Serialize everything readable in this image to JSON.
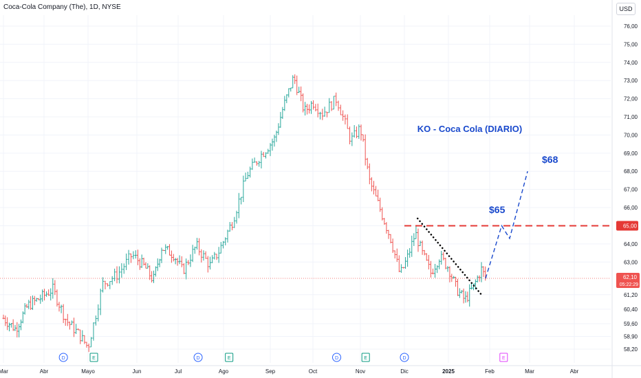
{
  "chart_title": "Coca-Cola Company (The), 1D, NYSE",
  "currency_button": "USD",
  "annotation_title": "KO - Coca Cola (DIARIO)",
  "price_label_65": "$65",
  "price_label_68": "$68",
  "price_tag_level": "65,00",
  "price_tag_last": "62,10",
  "price_tag_countdown": "05:22:29",
  "year_label": "2025",
  "event_markers": [
    {
      "letter": "D",
      "type": "dividend",
      "month_pos": 1.44
    },
    {
      "letter": "E",
      "type": "earnings",
      "month_pos": 2.12
    },
    {
      "letter": "D",
      "type": "dividend",
      "month_pos": 4.44
    },
    {
      "letter": "E",
      "type": "earnings",
      "month_pos": 5.12
    },
    {
      "letter": "D",
      "type": "dividend",
      "month_pos": 7.5
    },
    {
      "letter": "E",
      "type": "earnings",
      "month_pos": 8.12
    },
    {
      "letter": "D",
      "type": "dividend",
      "month_pos": 9.0
    },
    {
      "letter": "E",
      "type": "earnings-upcoming",
      "month_pos": 11.35
    }
  ],
  "colors": {
    "up": "#26a69a",
    "down": "#ef5350",
    "annotation_blue": "#1848cc",
    "level_red": "#e53935",
    "dividend": "#2962ff",
    "earnings": "#089981",
    "earnings_upcoming": "#e040fb"
  },
  "chart_data": {
    "type": "candlestick",
    "title": "Coca-Cola Company (The), 1D, NYSE",
    "x_axis_labels": [
      "Mar",
      "Abr",
      "Mayo",
      "Jun",
      "Jul",
      "Ago",
      "Sep",
      "Oct",
      "Nov",
      "Dic",
      "2025",
      "Feb",
      "Mar",
      "Abr"
    ],
    "y_axis_ticks": [
      "76,00",
      "75,00",
      "74,00",
      "73,00",
      "72,00",
      "71,00",
      "70,00",
      "69,00",
      "68,00",
      "67,00",
      "66,00",
      "65,00",
      "64,00",
      "63,00",
      "62,10",
      "61,20",
      "60,40",
      "59,60",
      "58,90",
      "58,20"
    ],
    "ylim": [
      57.9,
      76.6
    ],
    "price_path": [
      [
        0.0,
        59.9
      ],
      [
        0.3,
        59.3
      ],
      [
        0.6,
        60.6
      ],
      [
        0.9,
        61.0
      ],
      [
        1.2,
        61.5
      ],
      [
        1.5,
        59.8
      ],
      [
        1.8,
        59.0
      ],
      [
        2.0,
        58.3
      ],
      [
        2.15,
        60.0
      ],
      [
        2.3,
        61.8
      ],
      [
        2.6,
        62.3
      ],
      [
        2.9,
        63.4
      ],
      [
        3.2,
        62.7
      ],
      [
        3.4,
        62.0
      ],
      [
        3.6,
        63.8
      ],
      [
        3.9,
        63.4
      ],
      [
        4.1,
        62.5
      ],
      [
        4.4,
        63.9
      ],
      [
        4.7,
        62.8
      ],
      [
        4.9,
        63.6
      ],
      [
        5.2,
        65.3
      ],
      [
        5.5,
        67.8
      ],
      [
        5.8,
        68.9
      ],
      [
        6.1,
        69.8
      ],
      [
        6.3,
        71.5
      ],
      [
        6.55,
        73.2
      ],
      [
        6.8,
        71.3
      ],
      [
        7.0,
        71.8
      ],
      [
        7.2,
        71.2
      ],
      [
        7.5,
        72.0
      ],
      [
        7.8,
        69.7
      ],
      [
        8.0,
        70.4
      ],
      [
        8.2,
        67.5
      ],
      [
        8.45,
        65.9
      ],
      [
        8.7,
        64.2
      ],
      [
        8.9,
        62.3
      ],
      [
        9.05,
        63.1
      ],
      [
        9.25,
        64.6
      ],
      [
        9.4,
        63.5
      ],
      [
        9.6,
        62.4
      ],
      [
        9.8,
        63.3
      ],
      [
        10.0,
        62.7
      ],
      [
        10.2,
        61.5
      ],
      [
        10.4,
        60.9
      ],
      [
        10.6,
        61.6
      ],
      [
        10.8,
        62.6
      ],
      [
        10.9,
        62.1
      ]
    ],
    "last_price": 62.1,
    "resistance_level": 65.0,
    "projection": [
      [
        10.9,
        62.1
      ],
      [
        11.3,
        65.0
      ],
      [
        11.5,
        64.3
      ],
      [
        11.95,
        68.0
      ]
    ],
    "trendline": [
      [
        9.3,
        65.4
      ],
      [
        10.8,
        61.2
      ]
    ]
  }
}
